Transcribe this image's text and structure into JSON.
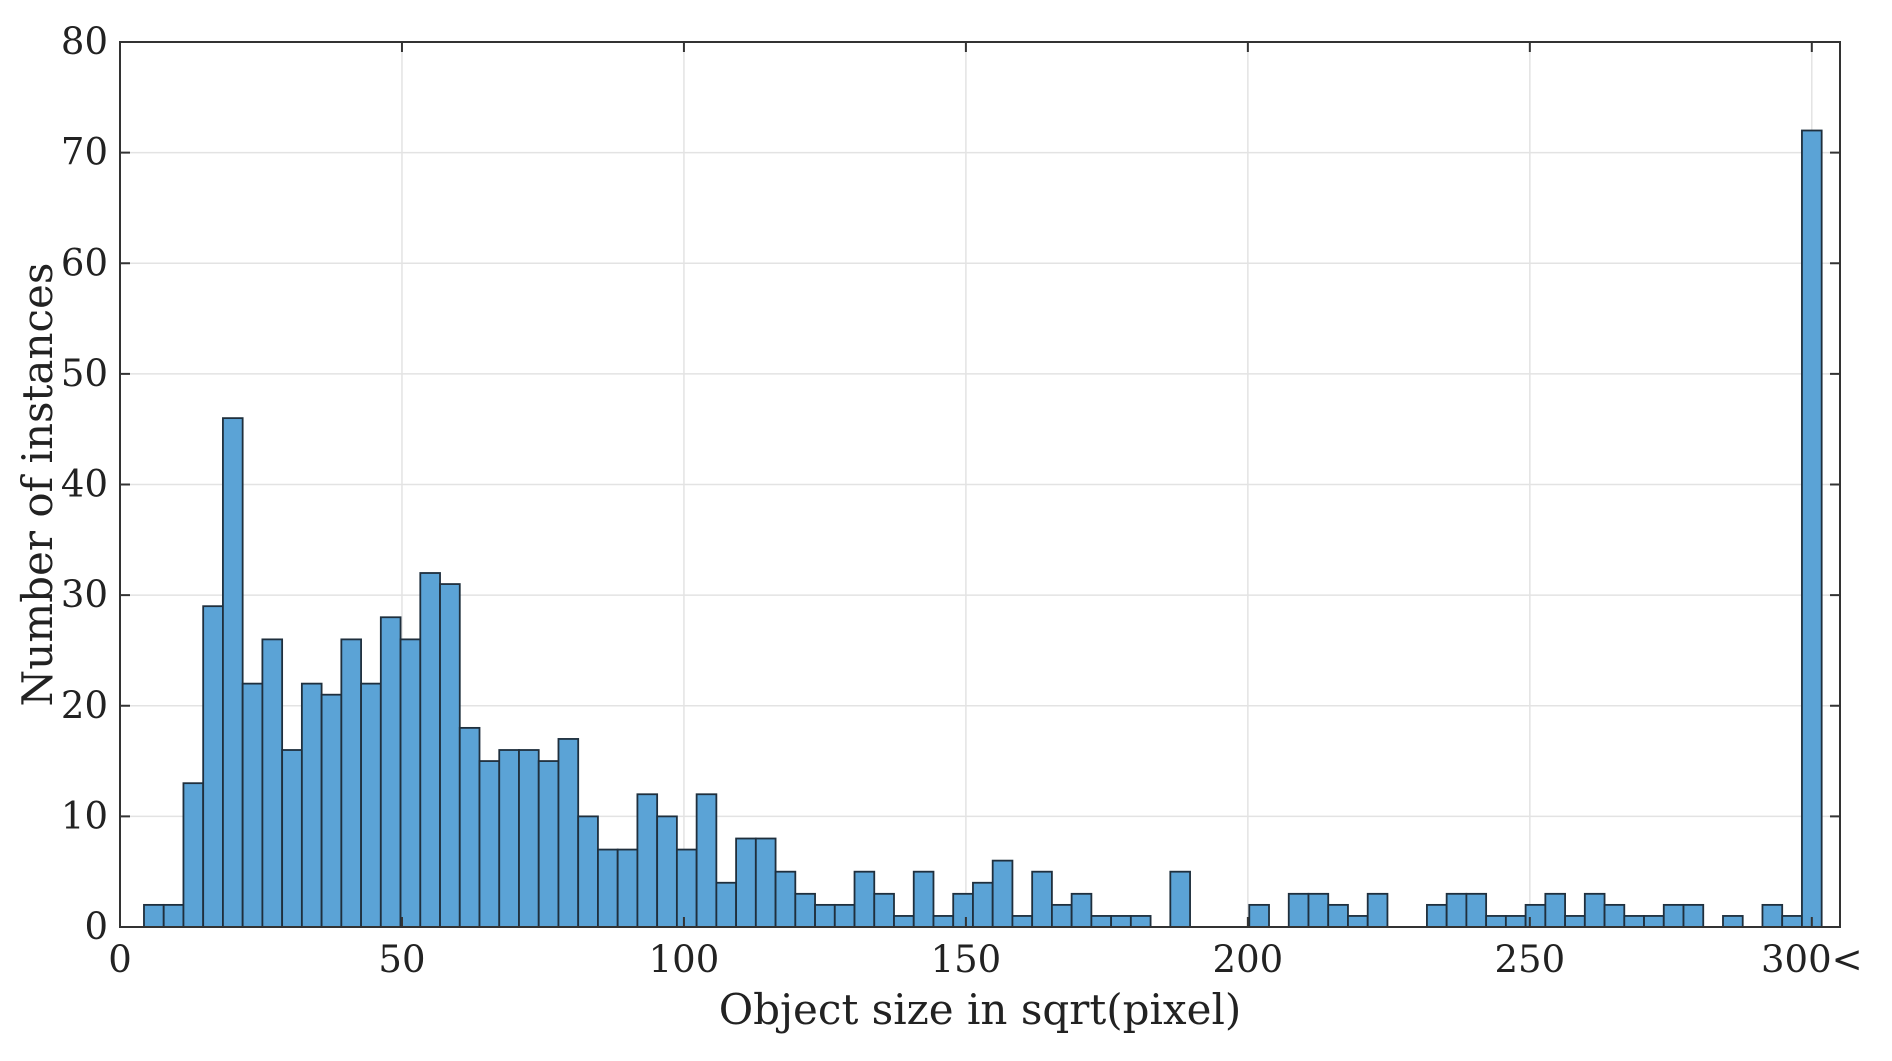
{
  "chart_data": {
    "type": "bar",
    "title": "",
    "xlabel": "Object size in sqrt(pixel)",
    "ylabel": "Number of instances",
    "xlim": [
      0,
      305
    ],
    "ylim": [
      0,
      80
    ],
    "bin_width": 3.5,
    "x_ticks": [
      {
        "value": 0,
        "label": "0"
      },
      {
        "value": 50,
        "label": "50"
      },
      {
        "value": 100,
        "label": "100"
      },
      {
        "value": 150,
        "label": "150"
      },
      {
        "value": 200,
        "label": "200"
      },
      {
        "value": 250,
        "label": "250"
      },
      {
        "value": 300,
        "label": "300<"
      }
    ],
    "y_ticks": [
      {
        "value": 0,
        "label": "0"
      },
      {
        "value": 10,
        "label": "10"
      },
      {
        "value": 20,
        "label": "20"
      },
      {
        "value": 30,
        "label": "30"
      },
      {
        "value": 40,
        "label": "40"
      },
      {
        "value": 50,
        "label": "50"
      },
      {
        "value": 60,
        "label": "60"
      },
      {
        "value": 70,
        "label": "70"
      },
      {
        "value": 80,
        "label": "80"
      }
    ],
    "grid": true,
    "bar_color": "#5ba3d6",
    "bar_edge_color": "#1f2f3d",
    "bins": [
      {
        "x": 6.0,
        "value": 2
      },
      {
        "x": 9.5,
        "value": 2
      },
      {
        "x": 13.0,
        "value": 13
      },
      {
        "x": 16.5,
        "value": 29
      },
      {
        "x": 20.0,
        "value": 46
      },
      {
        "x": 23.5,
        "value": 22
      },
      {
        "x": 27.0,
        "value": 26
      },
      {
        "x": 30.5,
        "value": 16
      },
      {
        "x": 34.0,
        "value": 22
      },
      {
        "x": 37.5,
        "value": 21
      },
      {
        "x": 41.0,
        "value": 26
      },
      {
        "x": 44.5,
        "value": 22
      },
      {
        "x": 48.0,
        "value": 28
      },
      {
        "x": 51.5,
        "value": 26
      },
      {
        "x": 55.0,
        "value": 32
      },
      {
        "x": 58.5,
        "value": 31
      },
      {
        "x": 62.0,
        "value": 18
      },
      {
        "x": 65.5,
        "value": 15
      },
      {
        "x": 69.0,
        "value": 16
      },
      {
        "x": 72.5,
        "value": 16
      },
      {
        "x": 76.0,
        "value": 15
      },
      {
        "x": 79.5,
        "value": 17
      },
      {
        "x": 83.0,
        "value": 10
      },
      {
        "x": 86.5,
        "value": 7
      },
      {
        "x": 90.0,
        "value": 7
      },
      {
        "x": 93.5,
        "value": 12
      },
      {
        "x": 97.0,
        "value": 10
      },
      {
        "x": 100.5,
        "value": 7
      },
      {
        "x": 104.0,
        "value": 12
      },
      {
        "x": 107.5,
        "value": 4
      },
      {
        "x": 111.0,
        "value": 8
      },
      {
        "x": 114.5,
        "value": 8
      },
      {
        "x": 118.0,
        "value": 5
      },
      {
        "x": 121.5,
        "value": 3
      },
      {
        "x": 125.0,
        "value": 2
      },
      {
        "x": 128.5,
        "value": 2
      },
      {
        "x": 132.0,
        "value": 5
      },
      {
        "x": 135.5,
        "value": 3
      },
      {
        "x": 139.0,
        "value": 1
      },
      {
        "x": 142.5,
        "value": 5
      },
      {
        "x": 146.0,
        "value": 1
      },
      {
        "x": 149.5,
        "value": 3
      },
      {
        "x": 153.0,
        "value": 4
      },
      {
        "x": 156.5,
        "value": 6
      },
      {
        "x": 160.0,
        "value": 1
      },
      {
        "x": 163.5,
        "value": 5
      },
      {
        "x": 167.0,
        "value": 2
      },
      {
        "x": 170.5,
        "value": 3
      },
      {
        "x": 174.0,
        "value": 1
      },
      {
        "x": 177.5,
        "value": 1
      },
      {
        "x": 181.0,
        "value": 1
      },
      {
        "x": 184.5,
        "value": 0
      },
      {
        "x": 188.0,
        "value": 5
      },
      {
        "x": 191.5,
        "value": 0
      },
      {
        "x": 195.0,
        "value": 0
      },
      {
        "x": 198.5,
        "value": 0
      },
      {
        "x": 202.0,
        "value": 2
      },
      {
        "x": 205.5,
        "value": 0
      },
      {
        "x": 209.0,
        "value": 3
      },
      {
        "x": 212.5,
        "value": 3
      },
      {
        "x": 216.0,
        "value": 2
      },
      {
        "x": 219.5,
        "value": 1
      },
      {
        "x": 223.0,
        "value": 3
      },
      {
        "x": 226.5,
        "value": 0
      },
      {
        "x": 230.0,
        "value": 0
      },
      {
        "x": 233.5,
        "value": 2
      },
      {
        "x": 237.0,
        "value": 3
      },
      {
        "x": 240.5,
        "value": 3
      },
      {
        "x": 244.0,
        "value": 1
      },
      {
        "x": 247.5,
        "value": 1
      },
      {
        "x": 251.0,
        "value": 2
      },
      {
        "x": 254.5,
        "value": 3
      },
      {
        "x": 258.0,
        "value": 1
      },
      {
        "x": 261.5,
        "value": 3
      },
      {
        "x": 265.0,
        "value": 2
      },
      {
        "x": 268.5,
        "value": 1
      },
      {
        "x": 272.0,
        "value": 1
      },
      {
        "x": 275.5,
        "value": 2
      },
      {
        "x": 279.0,
        "value": 2
      },
      {
        "x": 282.5,
        "value": 0
      },
      {
        "x": 286.0,
        "value": 1
      },
      {
        "x": 289.5,
        "value": 0
      },
      {
        "x": 293.0,
        "value": 2
      },
      {
        "x": 296.5,
        "value": 1
      },
      {
        "x": 300.0,
        "value": 72
      }
    ]
  }
}
